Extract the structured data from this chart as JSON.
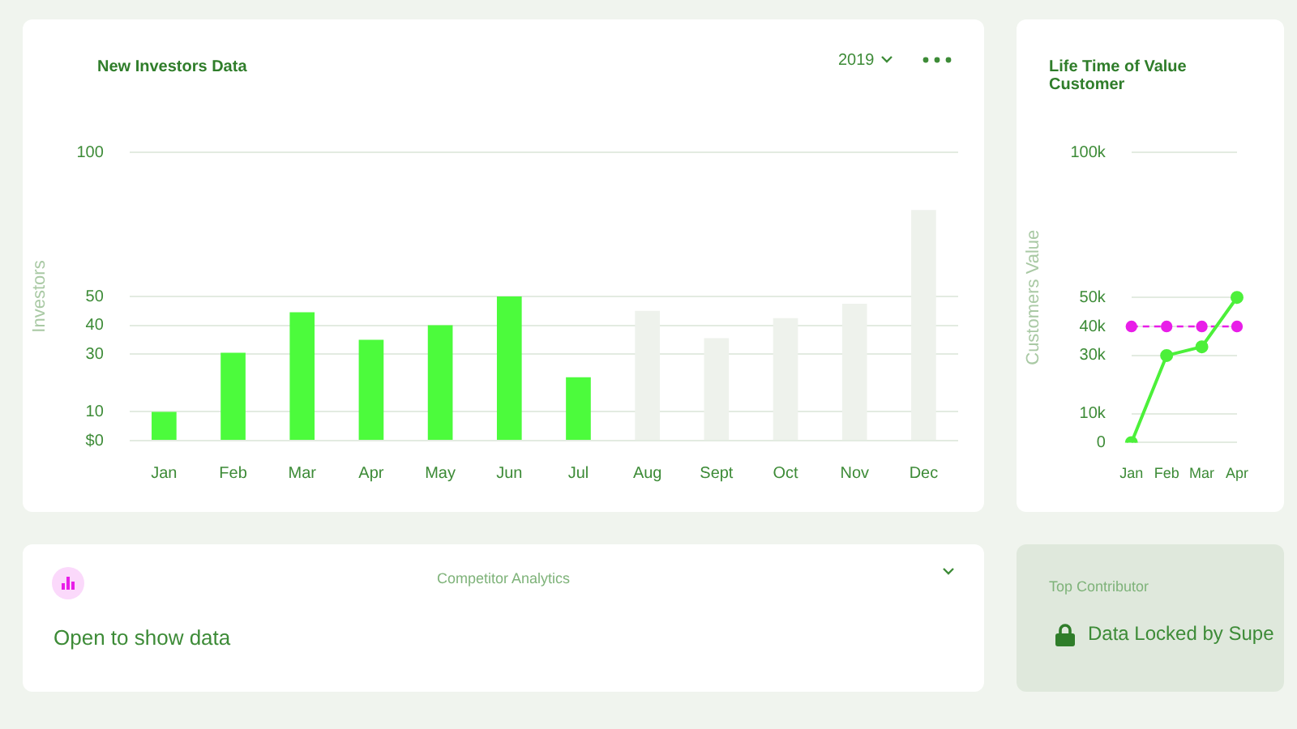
{
  "chart_data": [
    {
      "type": "bar",
      "title": "New Investors Data",
      "annotations": [
        "2019"
      ],
      "ylabel": "Investors",
      "categories": [
        "Jan",
        "Feb",
        "Mar",
        "Apr",
        "May",
        "Jun",
        "Jul",
        "Aug",
        "Sept",
        "Oct",
        "Nov",
        "Dec"
      ],
      "values": [
        10,
        30.5,
        44.5,
        35,
        40,
        50,
        22,
        45,
        35.5,
        42.5,
        47.5,
        80
      ],
      "colors": [
        "#4cfb3c",
        "#4cfb3c",
        "#4cfb3c",
        "#4cfb3c",
        "#4cfb3c",
        "#4cfb3c",
        "#4cfb3c",
        "#eef2ec",
        "#eef2ec",
        "#eef2ec",
        "#eef2ec",
        "#eef2ec"
      ],
      "ylim": [
        0,
        100
      ],
      "yticks": [
        {
          "value": 0,
          "label": "$0"
        },
        10,
        30,
        40,
        50,
        100
      ],
      "grid": "y",
      "legend": false
    },
    {
      "type": "line",
      "title": "Life Time of Value Customer",
      "ylabel": "Customers Value",
      "categories": [
        "Jan",
        "Feb",
        "Mar",
        "Apr"
      ],
      "series": [
        {
          "color": "#4cf03a",
          "values": [
            0,
            30000,
            33000,
            50000
          ]
        },
        {
          "color": "#e81ee8",
          "values": [
            40000,
            40000,
            40000,
            40000
          ],
          "line_style": "dashed"
        }
      ],
      "ylim": [
        0,
        100000
      ],
      "yticks": [
        0,
        {
          "value": 10000,
          "label": "10k"
        },
        {
          "value": 30000,
          "label": "30k"
        },
        {
          "value": 40000,
          "label": "40k"
        },
        {
          "value": 50000,
          "label": "50k"
        },
        {
          "value": 100000,
          "label": "100k"
        }
      ],
      "grid": "y",
      "legend": false,
      "marker": "circle"
    },
    {
      "type": "other",
      "title": "Competitor Analytics",
      "annotations": [
        "Open to show data"
      ]
    },
    {
      "type": "other",
      "title": "Top Contributor",
      "annotations": [
        "Data Locked by Supe"
      ]
    }
  ]
}
